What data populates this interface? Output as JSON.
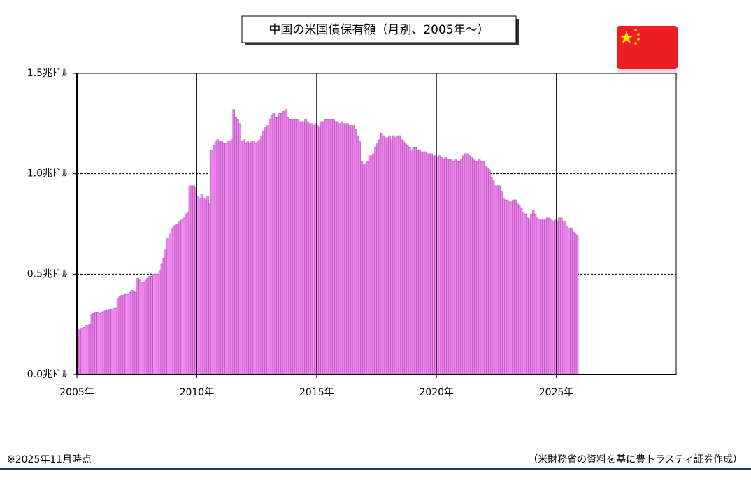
{
  "chart_data": {
    "type": "bar",
    "title": "中国の米国債保有額（月別、2005年～）",
    "footnote_left": "※2025年11月時点",
    "footnote_right": "（米財務省の資料を基に豊トラスティ証券作成）",
    "color": "#ee88ee",
    "edge_color": "#b04cb0",
    "grid": true,
    "xlim": [
      2005,
      2030
    ],
    "ylim": [
      0,
      1.5
    ],
    "yticks": [
      {
        "value": 0,
        "label": "0.0兆ﾄﾞﾙ"
      },
      {
        "value": 0.5,
        "label": "0.5兆ﾄﾞﾙ"
      },
      {
        "value": 1.0,
        "label": "1.0兆ﾄﾞﾙ"
      },
      {
        "value": 1.5,
        "label": "1.5兆ﾄﾞﾙ"
      }
    ],
    "xticks": [
      {
        "value": 2005,
        "label": "2005年"
      },
      {
        "value": 2010,
        "label": "2010年"
      },
      {
        "value": 2015,
        "label": "2015年"
      },
      {
        "value": 2020,
        "label": "2020年"
      },
      {
        "value": 2025,
        "label": "2025年"
      }
    ],
    "x": [
      2005,
      2005.083,
      2005.167,
      2005.25,
      2005.333,
      2005.417,
      2005.5,
      2005.583,
      2005.667,
      2005.75,
      2005.833,
      2005.917,
      2006,
      2006.083,
      2006.167,
      2006.25,
      2006.333,
      2006.417,
      2006.5,
      2006.583,
      2006.667,
      2006.75,
      2006.833,
      2006.917,
      2007,
      2007.083,
      2007.167,
      2007.25,
      2007.333,
      2007.417,
      2007.5,
      2007.583,
      2007.667,
      2007.75,
      2007.833,
      2007.917,
      2008,
      2008.083,
      2008.167,
      2008.25,
      2008.333,
      2008.417,
      2008.5,
      2008.583,
      2008.667,
      2008.75,
      2008.833,
      2008.917,
      2009,
      2009.083,
      2009.167,
      2009.25,
      2009.333,
      2009.417,
      2009.5,
      2009.583,
      2009.667,
      2009.75,
      2009.833,
      2009.917,
      2010,
      2010.083,
      2010.167,
      2010.25,
      2010.333,
      2010.417,
      2010.5,
      2010.583,
      2010.667,
      2010.75,
      2010.833,
      2010.917,
      2011,
      2011.083,
      2011.167,
      2011.25,
      2011.333,
      2011.417,
      2011.5,
      2011.583,
      2011.667,
      2011.75,
      2011.833,
      2011.917,
      2012,
      2012.083,
      2012.167,
      2012.25,
      2012.333,
      2012.417,
      2012.5,
      2012.583,
      2012.667,
      2012.75,
      2012.833,
      2012.917,
      2013,
      2013.083,
      2013.167,
      2013.25,
      2013.333,
      2013.417,
      2013.5,
      2013.583,
      2013.667,
      2013.75,
      2013.833,
      2013.917,
      2014,
      2014.083,
      2014.167,
      2014.25,
      2014.333,
      2014.417,
      2014.5,
      2014.583,
      2014.667,
      2014.75,
      2014.833,
      2014.917,
      2015,
      2015.083,
      2015.167,
      2015.25,
      2015.333,
      2015.417,
      2015.5,
      2015.583,
      2015.667,
      2015.75,
      2015.833,
      2015.917,
      2016,
      2016.083,
      2016.167,
      2016.25,
      2016.333,
      2016.417,
      2016.5,
      2016.583,
      2016.667,
      2016.75,
      2016.833,
      2016.917,
      2017,
      2017.083,
      2017.167,
      2017.25,
      2017.333,
      2017.417,
      2017.5,
      2017.583,
      2017.667,
      2017.75,
      2017.833,
      2017.917,
      2018,
      2018.083,
      2018.167,
      2018.25,
      2018.333,
      2018.417,
      2018.5,
      2018.583,
      2018.667,
      2018.75,
      2018.833,
      2018.917,
      2019,
      2019.083,
      2019.167,
      2019.25,
      2019.333,
      2019.417,
      2019.5,
      2019.583,
      2019.667,
      2019.75,
      2019.833,
      2019.917,
      2020,
      2020.083,
      2020.167,
      2020.25,
      2020.333,
      2020.417,
      2020.5,
      2020.583,
      2020.667,
      2020.75,
      2020.833,
      2020.917,
      2021,
      2021.083,
      2021.167,
      2021.25,
      2021.333,
      2021.417,
      2021.5,
      2021.583,
      2021.667,
      2021.75,
      2021.833,
      2021.917,
      2022,
      2022.083,
      2022.167,
      2022.25,
      2022.333,
      2022.417,
      2022.5,
      2022.583,
      2022.667,
      2022.75,
      2022.833,
      2022.917,
      2023,
      2023.083,
      2023.167,
      2023.25,
      2023.333,
      2023.417,
      2023.5,
      2023.583,
      2023.667,
      2023.75,
      2023.833,
      2023.917,
      2024,
      2024.083,
      2024.167,
      2024.25,
      2024.333,
      2024.417,
      2024.5,
      2024.583,
      2024.667,
      2024.75,
      2024.833,
      2024.917,
      2025,
      2025.083,
      2025.167,
      2025.25,
      2025.333,
      2025.417,
      2025.5,
      2025.583,
      2025.667,
      2025.75,
      2025.833
    ],
    "values": [
      0.223,
      0.223,
      0.23,
      0.235,
      0.245,
      0.245,
      0.25,
      0.3,
      0.305,
      0.31,
      0.31,
      0.305,
      0.31,
      0.315,
      0.32,
      0.32,
      0.325,
      0.325,
      0.33,
      0.33,
      0.38,
      0.39,
      0.395,
      0.395,
      0.4,
      0.4,
      0.41,
      0.42,
      0.415,
      0.41,
      0.48,
      0.47,
      0.46,
      0.46,
      0.47,
      0.48,
      0.49,
      0.49,
      0.5,
      0.5,
      0.5,
      0.52,
      0.55,
      0.58,
      0.62,
      0.68,
      0.7,
      0.73,
      0.74,
      0.745,
      0.75,
      0.76,
      0.77,
      0.78,
      0.8,
      0.81,
      0.94,
      0.94,
      0.94,
      0.93,
      0.89,
      0.88,
      0.9,
      0.88,
      0.87,
      0.89,
      0.85,
      1.12,
      1.14,
      1.16,
      1.17,
      1.16,
      1.16,
      1.15,
      1.15,
      1.16,
      1.16,
      1.17,
      1.32,
      1.28,
      1.27,
      1.25,
      1.16,
      1.17,
      1.15,
      1.16,
      1.15,
      1.16,
      1.16,
      1.15,
      1.16,
      1.17,
      1.19,
      1.21,
      1.23,
      1.24,
      1.27,
      1.29,
      1.3,
      1.28,
      1.28,
      1.3,
      1.3,
      1.31,
      1.32,
      1.28,
      1.27,
      1.27,
      1.27,
      1.27,
      1.27,
      1.26,
      1.26,
      1.26,
      1.27,
      1.26,
      1.25,
      1.25,
      1.24,
      1.25,
      1.24,
      1.23,
      1.26,
      1.26,
      1.27,
      1.27,
      1.27,
      1.27,
      1.27,
      1.26,
      1.26,
      1.25,
      1.26,
      1.25,
      1.25,
      1.25,
      1.24,
      1.24,
      1.24,
      1.22,
      1.19,
      1.16,
      1.06,
      1.05,
      1.05,
      1.06,
      1.09,
      1.09,
      1.1,
      1.13,
      1.15,
      1.17,
      1.2,
      1.19,
      1.18,
      1.18,
      1.19,
      1.17,
      1.19,
      1.18,
      1.19,
      1.19,
      1.17,
      1.16,
      1.15,
      1.14,
      1.13,
      1.12,
      1.13,
      1.13,
      1.12,
      1.12,
      1.11,
      1.11,
      1.11,
      1.1,
      1.1,
      1.1,
      1.09,
      1.09,
      1.08,
      1.09,
      1.08,
      1.07,
      1.08,
      1.07,
      1.07,
      1.07,
      1.06,
      1.07,
      1.06,
      1.06,
      1.07,
      1.09,
      1.1,
      1.1,
      1.09,
      1.08,
      1.07,
      1.06,
      1.06,
      1.07,
      1.06,
      1.06,
      1.04,
      1.03,
      1.02,
      0.98,
      0.97,
      0.94,
      0.94,
      0.94,
      0.91,
      0.88,
      0.87,
      0.87,
      0.86,
      0.86,
      0.87,
      0.87,
      0.85,
      0.84,
      0.83,
      0.81,
      0.8,
      0.78,
      0.77,
      0.8,
      0.82,
      0.8,
      0.78,
      0.77,
      0.77,
      0.77,
      0.77,
      0.78,
      0.78,
      0.77,
      0.76,
      0.77,
      0.76,
      0.78,
      0.78,
      0.76,
      0.76,
      0.74,
      0.73,
      0.73,
      0.71,
      0.7,
      0.69
    ]
  }
}
